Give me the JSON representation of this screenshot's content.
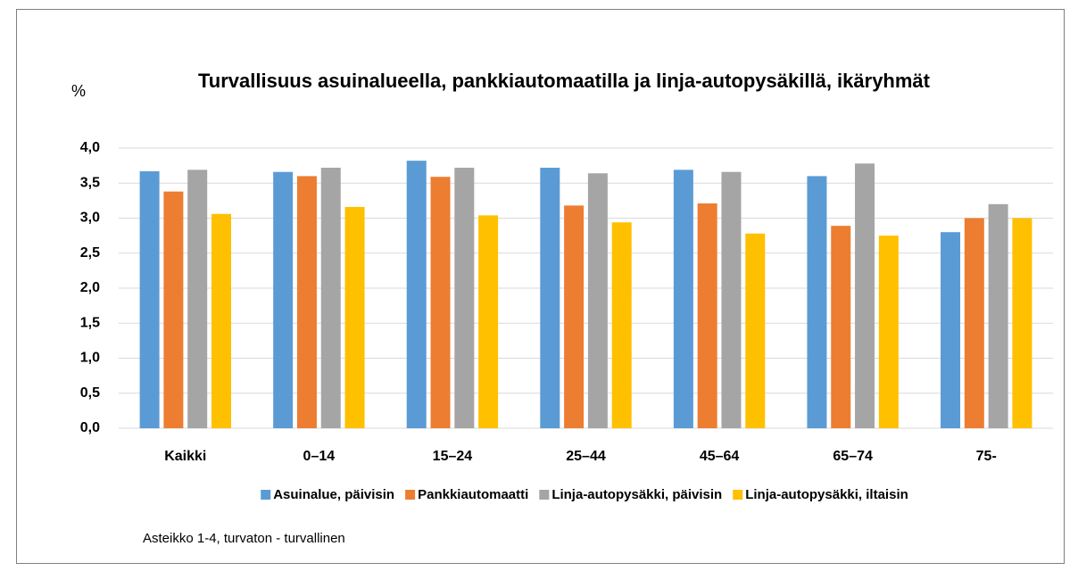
{
  "chart_data": {
    "type": "bar",
    "title": "Turvallisuus asuinalueella, pankkiautomaatilla ja linja-autopysäkillä, ikäryhmät",
    "y_label": "%",
    "note": "Asteikko 1-4, turvaton - turvallinen",
    "categories": [
      "Kaikki",
      "0–14",
      "15–24",
      "25–44",
      "45–64",
      "65–74",
      "75-"
    ],
    "series": [
      {
        "name": "Asuinalue, päivisin",
        "color": "#5b9bd5",
        "values": [
          3.67,
          3.66,
          3.82,
          3.72,
          3.69,
          3.6,
          2.8
        ]
      },
      {
        "name": "Pankkiautomaatti",
        "color": "#ed7d31",
        "values": [
          3.38,
          3.6,
          3.59,
          3.18,
          3.21,
          2.89,
          3.0
        ]
      },
      {
        "name": "Linja-autopysäkki, päivisin",
        "color": "#a5a5a5",
        "values": [
          3.69,
          3.72,
          3.72,
          3.64,
          3.66,
          3.78,
          3.2
        ]
      },
      {
        "name": "Linja-autopysäkki, iltaisin",
        "color": "#ffc000",
        "values": [
          3.06,
          3.16,
          3.04,
          2.94,
          2.78,
          2.75,
          3.0
        ]
      }
    ],
    "ylim": [
      0,
      4
    ],
    "yticks": [
      {
        "value": 0,
        "label": "0,0"
      },
      {
        "value": 0.5,
        "label": "0,5"
      },
      {
        "value": 1,
        "label": "1,0"
      },
      {
        "value": 1.5,
        "label": "1,5"
      },
      {
        "value": 2,
        "label": "2,0"
      },
      {
        "value": 2.5,
        "label": "2,5"
      },
      {
        "value": 3,
        "label": "3,0"
      },
      {
        "value": 3.5,
        "label": "3,5"
      },
      {
        "value": 4,
        "label": "4,0"
      }
    ],
    "grid": true,
    "legend": "bottom"
  }
}
